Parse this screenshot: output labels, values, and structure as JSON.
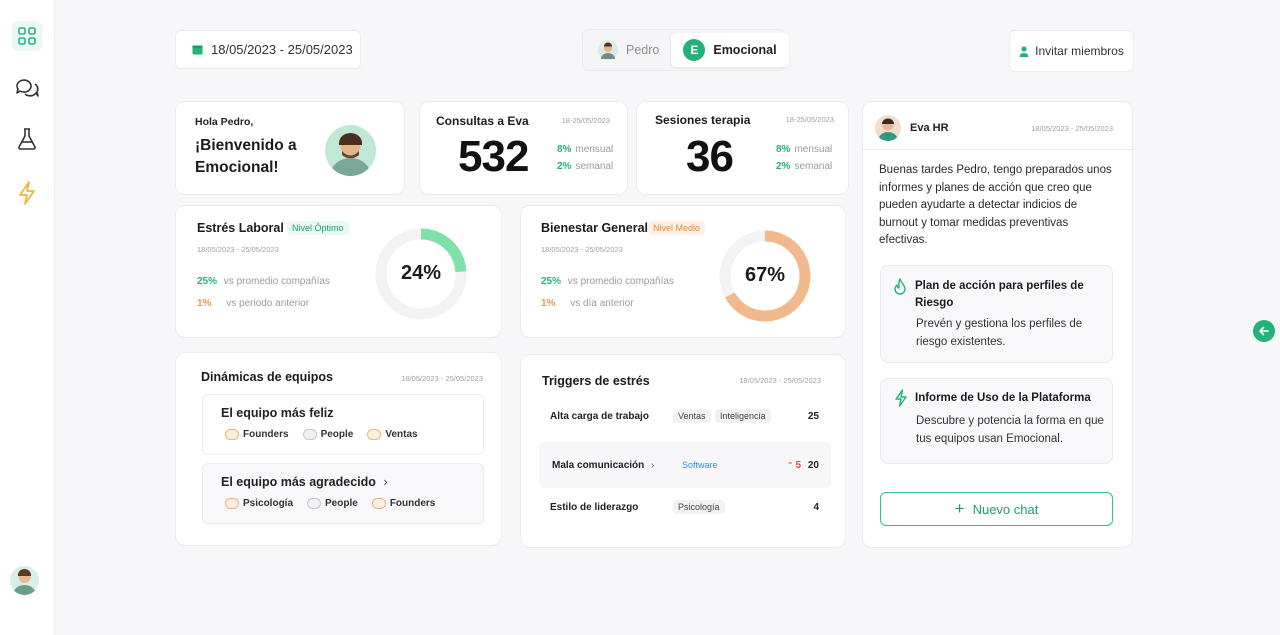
{
  "date_range": "18/05/2023 - 25/05/2023",
  "switcher": {
    "user": "Pedro",
    "org_initial": "E",
    "org": "Emocional"
  },
  "invite_label": "Invitar miembros",
  "welcome": {
    "greeting": "Hola Pedro,",
    "line1": "¡Bienvenido a",
    "line2": "Emocional!"
  },
  "consultas": {
    "title": "Consultas a Eva",
    "date": "18-25/05/2023",
    "value": "532",
    "monthly_pct": "8%",
    "monthly_label": "mensual",
    "weekly_pct": "2%",
    "weekly_label": "semanal"
  },
  "sesiones": {
    "title": "Sesiones terapia",
    "date": "18-25/05/2023",
    "value": "36",
    "monthly_pct": "8%",
    "monthly_label": "mensual",
    "weekly_pct": "2%",
    "weekly_label": "semanal"
  },
  "estres": {
    "title": "Estrés Laboral",
    "badge": "Nivel Óptimo",
    "date": "18/05/2023 - 25/05/2023",
    "pct1": "25%",
    "label1": "vs promedio compañías",
    "pct2": "1%",
    "label2": "vs periodo anterior",
    "gauge_label": "24%",
    "gauge_value": 24,
    "color": "#7fe0a8"
  },
  "bienestar": {
    "title": "Bienestar General",
    "badge": "Nivel Medio",
    "date": "18/05/2023 - 25/05/2023",
    "pct1": "25%",
    "label1": "vs promedio compañías",
    "pct2": "1%",
    "label2": "vs día anterior",
    "gauge_label": "67%",
    "gauge_value": 67,
    "color": "#f2b98c"
  },
  "dinamicas": {
    "title": "Dinámicas de equipos",
    "date": "18/05/2023 - 25/05/2023",
    "happy": {
      "title": "El equipo más feliz",
      "tags": [
        "Founders",
        "People",
        "Ventas"
      ]
    },
    "grateful": {
      "title": "El equipo más agradecido",
      "tags": [
        "Psicología",
        "People",
        "Founders"
      ]
    }
  },
  "triggers": {
    "title": "Triggers de estrés",
    "date": "18/05/2023 - 25/05/2023",
    "rows": [
      {
        "name": "Alta carga de trabajo",
        "tags": [
          "Ventas",
          "Inteligencia"
        ],
        "count": "25"
      },
      {
        "name": "Mala comunicación",
        "tags": [
          "Software"
        ],
        "up": "5",
        "count": "20"
      },
      {
        "name": "Estilo de liderazgo",
        "tags": [
          "Psicología"
        ],
        "count": "4"
      }
    ]
  },
  "eva": {
    "name": "Eva HR",
    "date": "18/05/2023 - 25/05/2023",
    "message": "Buenas tardes Pedro, tengo preparados unos informes y planes de acción que creo que pueden ayudarte a detectar indicios de burnout y tomar medidas preventivas efectivas.",
    "plan": {
      "title": "Plan de acción para perfiles de Riesgo",
      "desc": "Prevén y gestiona los perfiles de riesgo existentes."
    },
    "informe": {
      "title": "Informe de Uso de la Plataforma",
      "desc": "Descubre y potencia la forma en que tus equipos usan Emocional."
    },
    "new_chat": "Nuevo chat"
  }
}
